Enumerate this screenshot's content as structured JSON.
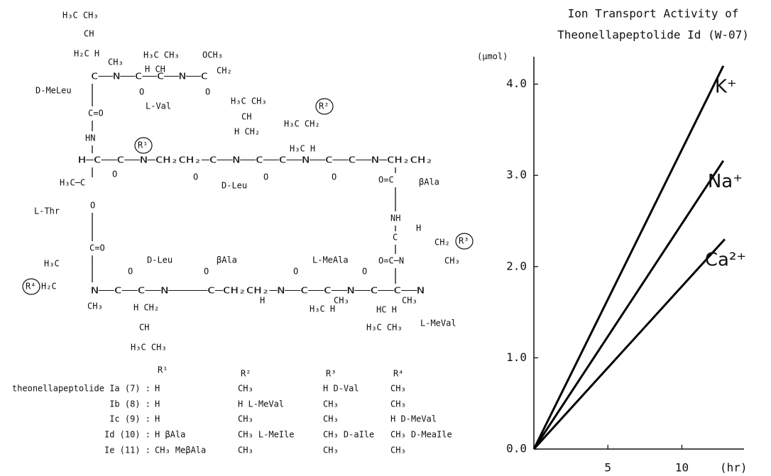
{
  "chart_data": {
    "type": "line",
    "title": [
      "Ion Transport Activity of",
      "Theonellapeptolide Id (W-07)"
    ],
    "y_label": "(μmol)",
    "x_label": "(hr)",
    "xlim": [
      0,
      14.2
    ],
    "ylim": [
      0,
      4.3
    ],
    "xticks": [
      5,
      10
    ],
    "yticks": [
      {
        "value": 0,
        "label": "0.0"
      },
      {
        "value": 1,
        "label": "1.0"
      },
      {
        "value": 2,
        "label": "2.0"
      },
      {
        "value": 3,
        "label": "3.0"
      },
      {
        "value": 4,
        "label": "4.0"
      }
    ],
    "series": [
      {
        "name": "K⁺",
        "color": "#000000",
        "x": [
          0,
          12.8
        ],
        "values": [
          0,
          4.2
        ]
      },
      {
        "name": "Na⁺",
        "color": "#000000",
        "x": [
          0,
          12.8
        ],
        "values": [
          0,
          3.16
        ]
      },
      {
        "name": "Ca²⁺",
        "color": "#000000",
        "x": [
          0,
          12.9
        ],
        "values": [
          0,
          2.3
        ]
      }
    ]
  },
  "structure": {
    "labels": [
      "H₃C  CH₃",
      "CH",
      "H₂C H",
      "CH₃",
      "D-MeLeu",
      "C──N──C──C──N──C",
      "H₃C  CH₃",
      "H  CH",
      "OCH₃",
      "CH₂",
      "O",
      "O",
      "L-Val",
      "C=O",
      "HN",
      "H₃C  CH₃",
      "CH",
      "H  CH₂",
      "H₃C  CH₂",
      "R²",
      "H₃C   H",
      "H─C──C──N─CH₂CH₂─C──N──C──C──N──C──C──N─CH₂CH₂",
      "R¹",
      "O",
      "O",
      "O",
      "O",
      "H₃C─C",
      "D-Leu",
      "O=C",
      "βAla",
      "L-Thr",
      "O",
      "NH",
      "H",
      "C",
      "CH₂",
      "R³",
      "O=C─N",
      "CH₃",
      "C=O",
      "D-Leu",
      "βAla",
      "L-MeAla",
      "H₃C",
      "R⁴",
      "H₂C",
      "N──C──C──N─────C─CH₂CH₂─N──C──C──N──C──C──N",
      "O",
      "O",
      "O",
      "O",
      "CH₃",
      "H CH₂",
      "CH",
      "H₃C  CH₃",
      "H",
      "H₃C H",
      "CH₃",
      "HC  H",
      "CH₃",
      "H₃C  CH₃",
      "L-MeVal"
    ]
  },
  "table": {
    "headers": [
      "R¹",
      "R²",
      "R³",
      "R⁴"
    ],
    "rows": [
      {
        "label": "theonellapeptolide Ia (7) :",
        "cells": [
          "H",
          "CH₃",
          "H  D-Val",
          "CH₃"
        ]
      },
      {
        "label": "Ib (8) :",
        "cells": [
          "H",
          "H  L-MeVal",
          "CH₃",
          "CH₃"
        ]
      },
      {
        "label": "Ic (9) :",
        "cells": [
          "H",
          "CH₃",
          "CH₃",
          "H  D-MeVal"
        ]
      },
      {
        "label": "Id (10) :",
        "cells": [
          "H  βAla",
          "CH₃ L-MeIle",
          "CH₃ D-aIle",
          "CH₃ D-MeaIle"
        ]
      },
      {
        "label": "Ie (11) :",
        "cells": [
          "CH₃ MeβAla",
          "CH₃",
          "CH₃",
          "CH₃"
        ]
      }
    ]
  }
}
